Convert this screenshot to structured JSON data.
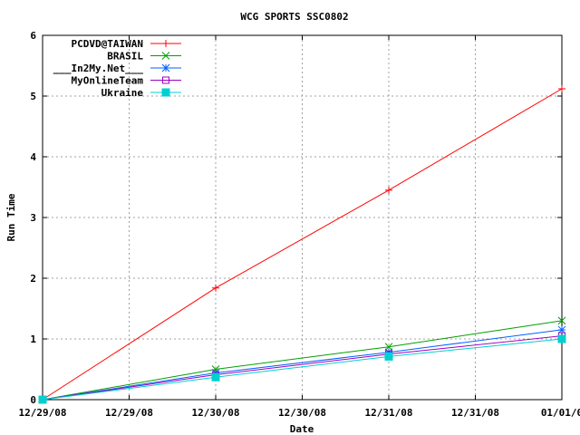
{
  "chart_data": {
    "type": "line",
    "title": "WCG SPORTS SSC0802",
    "xlabel": "Date",
    "ylabel": "Run Time",
    "x_tick_labels": [
      "12/29/08",
      "12/29/08",
      "12/30/08",
      "12/30/08",
      "12/31/08",
      "12/31/08",
      "01/01/0"
    ],
    "x_ticks": [
      0,
      0.5,
      1,
      1.5,
      2,
      2.5,
      3
    ],
    "xlim": [
      0,
      3
    ],
    "ylim": [
      0,
      6
    ],
    "y_ticks": [
      0,
      1,
      2,
      3,
      4,
      5,
      6
    ],
    "grid": true,
    "legend_position": "top-left",
    "series": [
      {
        "name": "PCDVD@TAIWAN",
        "color": "#ff0000",
        "marker": "plus",
        "x": [
          0,
          1,
          2,
          3
        ],
        "y": [
          0,
          1.84,
          3.45,
          5.12
        ]
      },
      {
        "name": "BRASIL",
        "color": "#00a000",
        "marker": "cross",
        "x": [
          0,
          1,
          2,
          3
        ],
        "y": [
          0,
          0.5,
          0.87,
          1.3
        ]
      },
      {
        "name": "___In2My.Net___",
        "color": "#0060ff",
        "marker": "star",
        "x": [
          0,
          1,
          2,
          3
        ],
        "y": [
          0,
          0.44,
          0.78,
          1.15
        ]
      },
      {
        "name": "MyOnlineTeam",
        "color": "#a000c0",
        "marker": "square-open",
        "x": [
          0,
          1,
          2,
          3
        ],
        "y": [
          0,
          0.41,
          0.75,
          1.05
        ]
      },
      {
        "name": "Ukraine",
        "color": "#00d0d0",
        "marker": "square-filled",
        "x": [
          0,
          1,
          2,
          3
        ],
        "y": [
          0,
          0.37,
          0.71,
          1.0
        ]
      }
    ]
  }
}
